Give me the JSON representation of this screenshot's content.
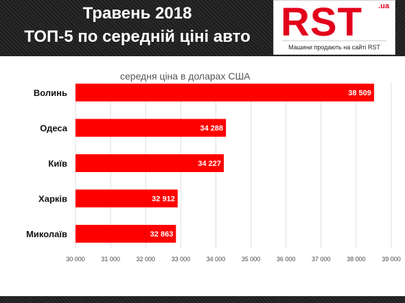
{
  "header": {
    "title_line1": "Травень 2018",
    "title_line2": "ТОП-5 по середній ціні авто"
  },
  "logo": {
    "name": "RST",
    "suffix": ".ua",
    "tagline": "Машини продають на сайті RST"
  },
  "colors": {
    "bar": "#ff0000",
    "brand": "#e3001b",
    "header_bg": "#222222"
  },
  "chart_data": {
    "type": "bar",
    "orientation": "horizontal",
    "title": "",
    "subtitle": "середня ціна в доларах США",
    "categories": [
      "Волинь",
      "Одеса",
      "Київ",
      "Харків",
      "Миколаїв"
    ],
    "values": [
      38509,
      34288,
      34227,
      32912,
      32863
    ],
    "value_labels": [
      "38 509",
      "34 288",
      "34 227",
      "32 912",
      "32 863"
    ],
    "xlim": [
      30000,
      39000
    ],
    "xticks": [
      30000,
      31000,
      32000,
      33000,
      34000,
      35000,
      36000,
      37000,
      38000,
      39000
    ],
    "xtick_labels": [
      "30 000",
      "31 000",
      "32 000",
      "33 000",
      "34 000",
      "35 000",
      "36 000",
      "37 000",
      "38 000",
      "39 000"
    ],
    "grid": true
  }
}
